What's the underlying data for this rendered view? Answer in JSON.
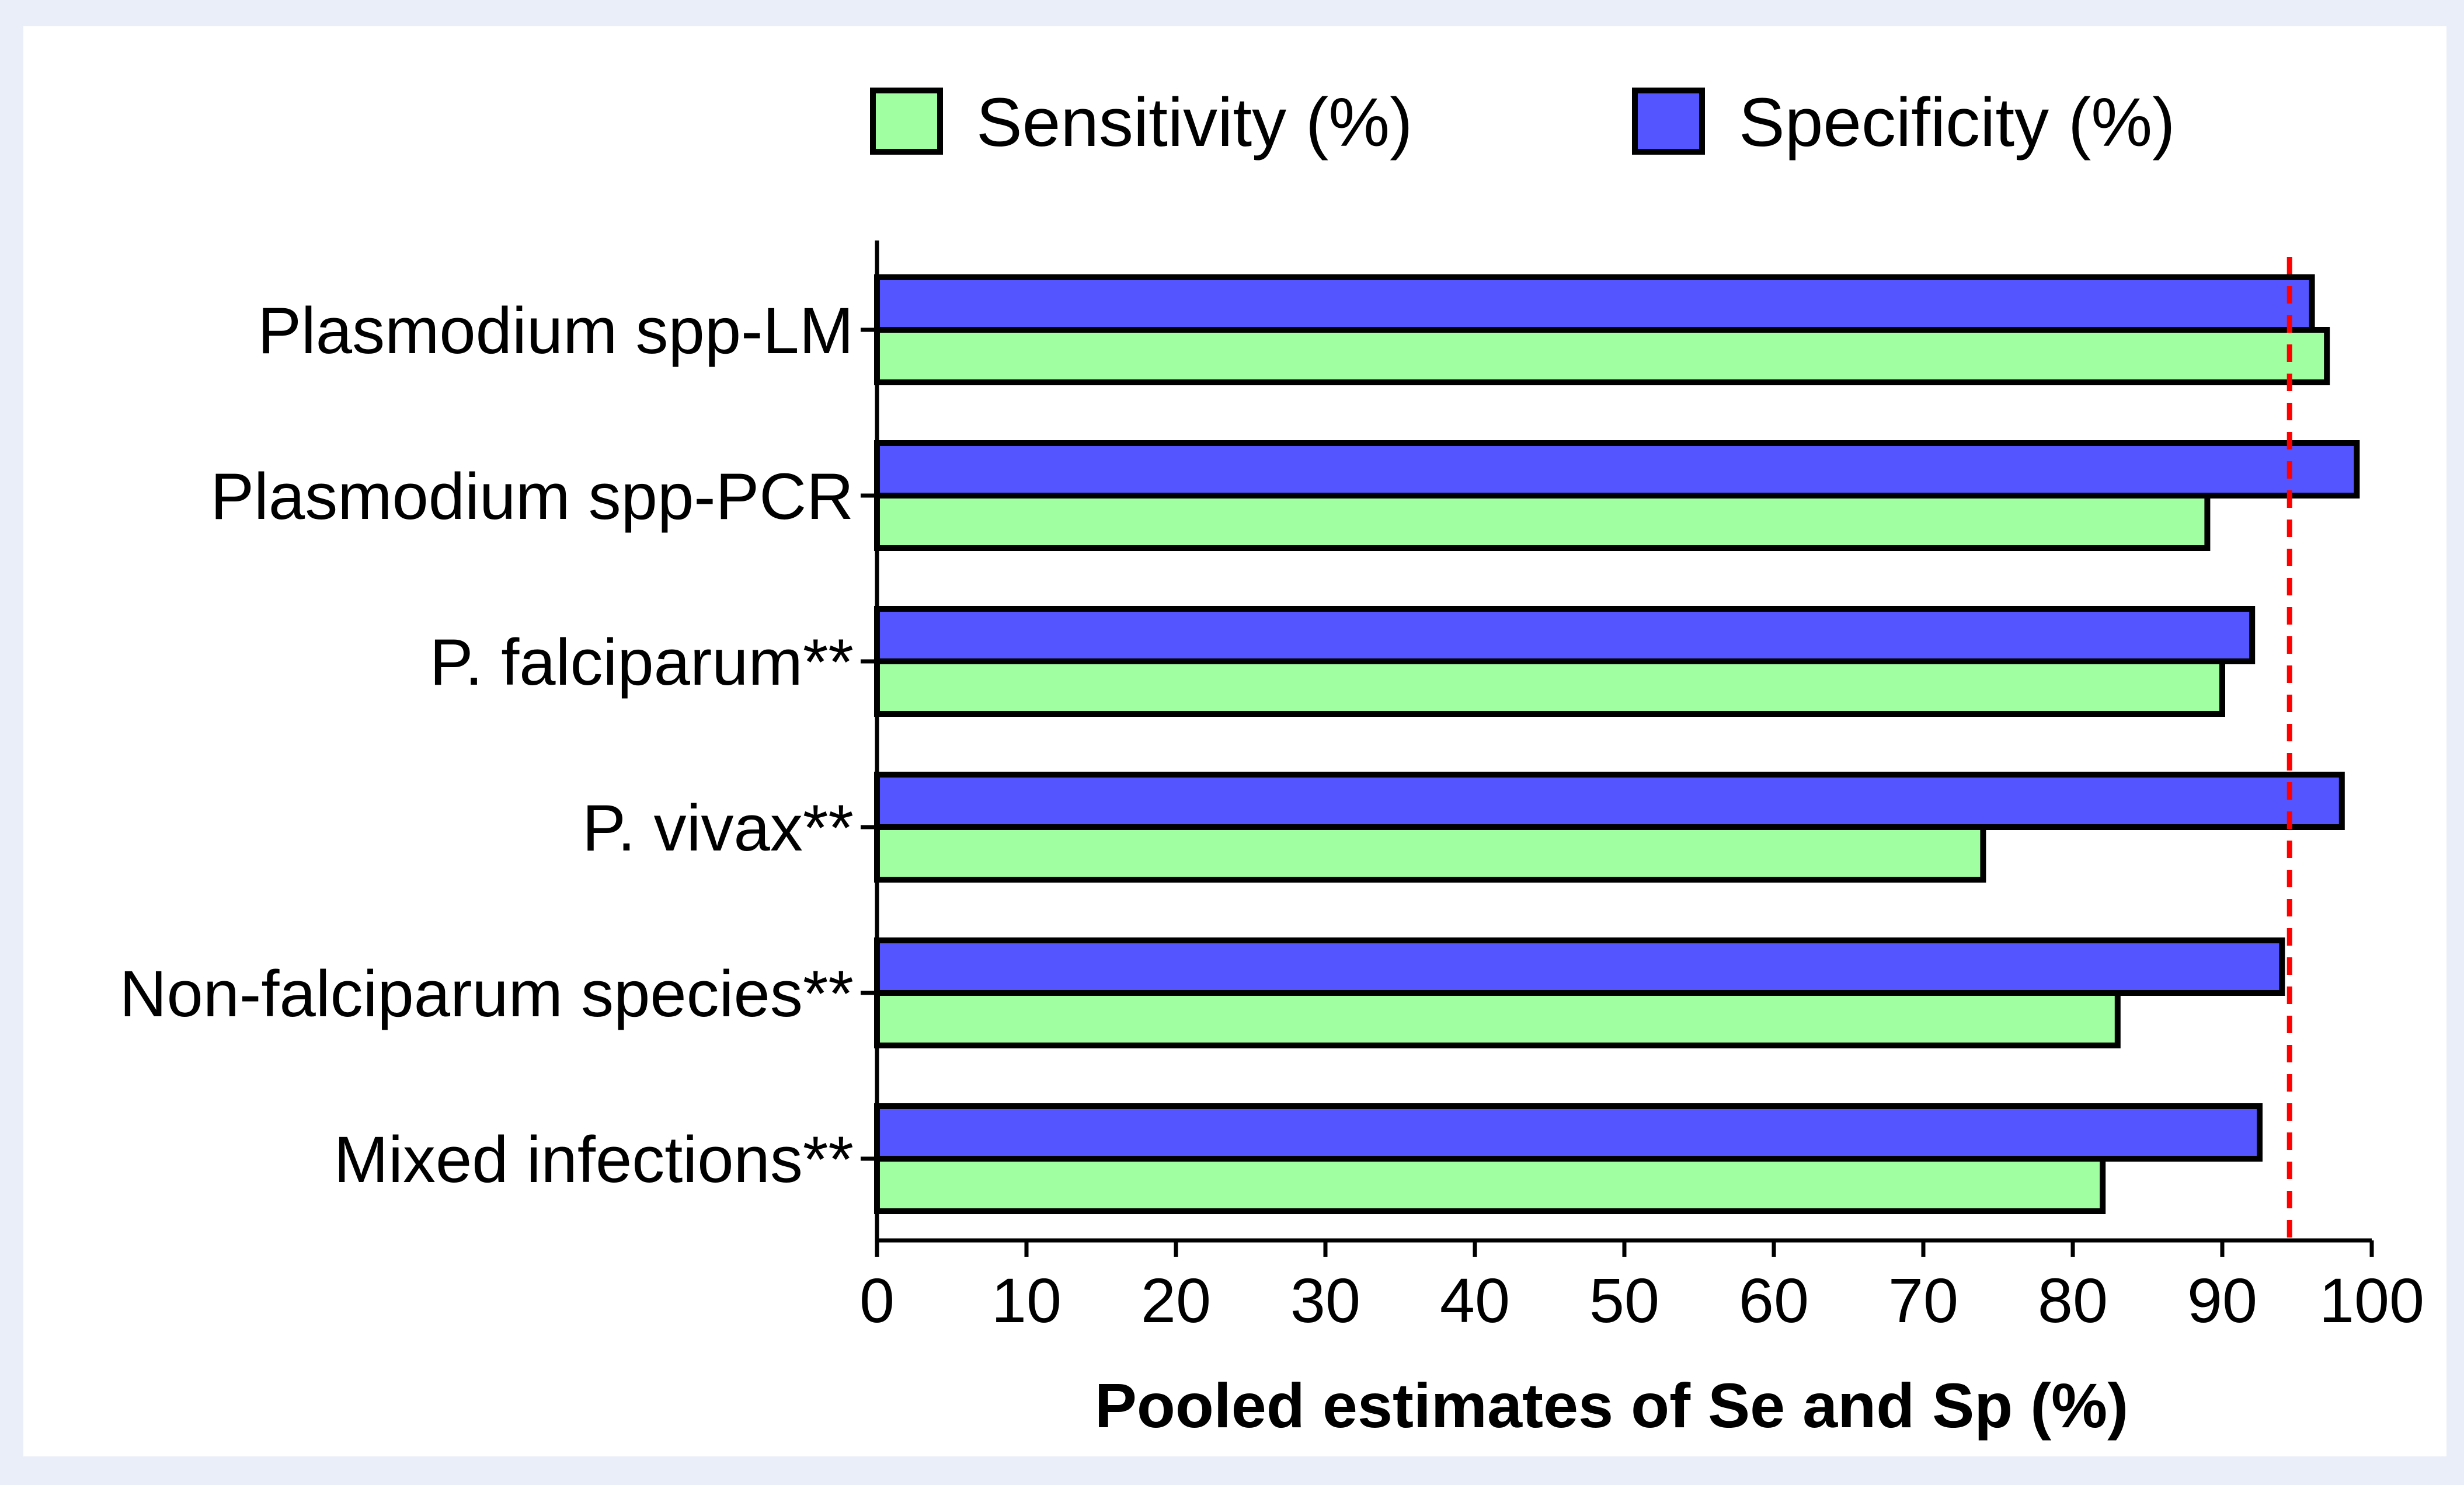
{
  "chart_data": {
    "type": "bar",
    "orientation": "horizontal",
    "categories": [
      "Plasmodium spp-LM",
      "Plasmodium spp-PCR",
      "P. falciparum**",
      "P. vivax**",
      "Non-falciparum species**",
      "Mixed infections**"
    ],
    "series": [
      {
        "name": "Specificity (%)",
        "color": "#5555ff",
        "values": [
          96,
          99,
          92,
          98,
          94,
          92.5
        ]
      },
      {
        "name": "Sensitivity (%)",
        "color": "#a0ffa0",
        "values": [
          97,
          89,
          90,
          74,
          83,
          82
        ]
      }
    ],
    "legend_order": [
      "Sensitivity (%)",
      "Specificity (%)"
    ],
    "legend_position": "top",
    "xlabel": "Pooled estimates of Se and Sp (%)",
    "ylabel": "",
    "xlim": [
      0,
      100
    ],
    "xticks": [
      "0",
      "10",
      "20",
      "30",
      "40",
      "50",
      "60",
      "70",
      "80",
      "90",
      "100"
    ],
    "reference_line": {
      "value": 94.5,
      "color": "#ff0000",
      "style": "dashed"
    },
    "grid": false
  }
}
